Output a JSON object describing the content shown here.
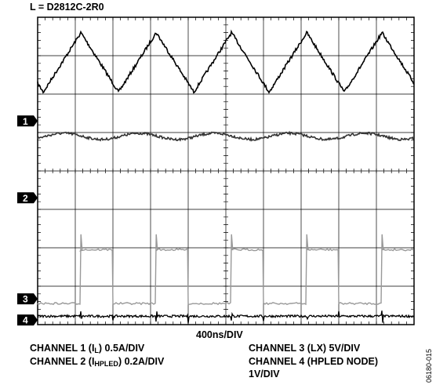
{
  "inductor_label": "L = D2812C-2R0",
  "time_div": "400ns/DIV",
  "figure_id": "06180-015",
  "captions": {
    "ch1_a": "CHANNEL 1 (I",
    "ch1_sub": "L",
    "ch1_b": ") 0.5A/DIV",
    "ch2_a": "CHANNEL 2 (I",
    "ch2_sub": "HPLED",
    "ch2_b": ") 0.2A/DIV",
    "ch3": "CHANNEL 3 (LX) 5V/DIV",
    "ch4_a": "CHANNEL 4 (HPLED NODE)",
    "ch4_b": "1V/DIV"
  },
  "chart_data": {
    "type": "line",
    "xlabel": "400ns/DIV",
    "grid": true,
    "divisions": {
      "x": 10,
      "y": 8
    },
    "xlim": [
      0,
      10
    ],
    "ylim": [
      0,
      8
    ],
    "channel_markers": [
      "1",
      "2",
      "3",
      "4"
    ],
    "series": [
      {
        "name": "1",
        "kind": "triangle",
        "period_div": 2.0,
        "peaks_div": [
          1.15,
          3.15,
          5.15,
          7.15,
          9.15
        ],
        "max_div": 7.6,
        "min_div": 6.05,
        "color": "#000000"
      },
      {
        "name": "2",
        "kind": "flat_noise",
        "level_div": 4.9,
        "ripple_div": 0.08,
        "color": "#333333"
      },
      {
        "name": "3",
        "kind": "square",
        "rise_div": [
          1.15,
          3.15,
          5.15,
          7.15,
          9.15
        ],
        "fall_div": [
          2.0,
          4.0,
          6.0,
          8.0
        ],
        "high_div": 1.95,
        "low_div": 0.55,
        "spike_div": 2.35,
        "color": "#999999"
      },
      {
        "name": "4",
        "kind": "noise",
        "level_div": 0.22,
        "color": "#000000"
      }
    ]
  }
}
